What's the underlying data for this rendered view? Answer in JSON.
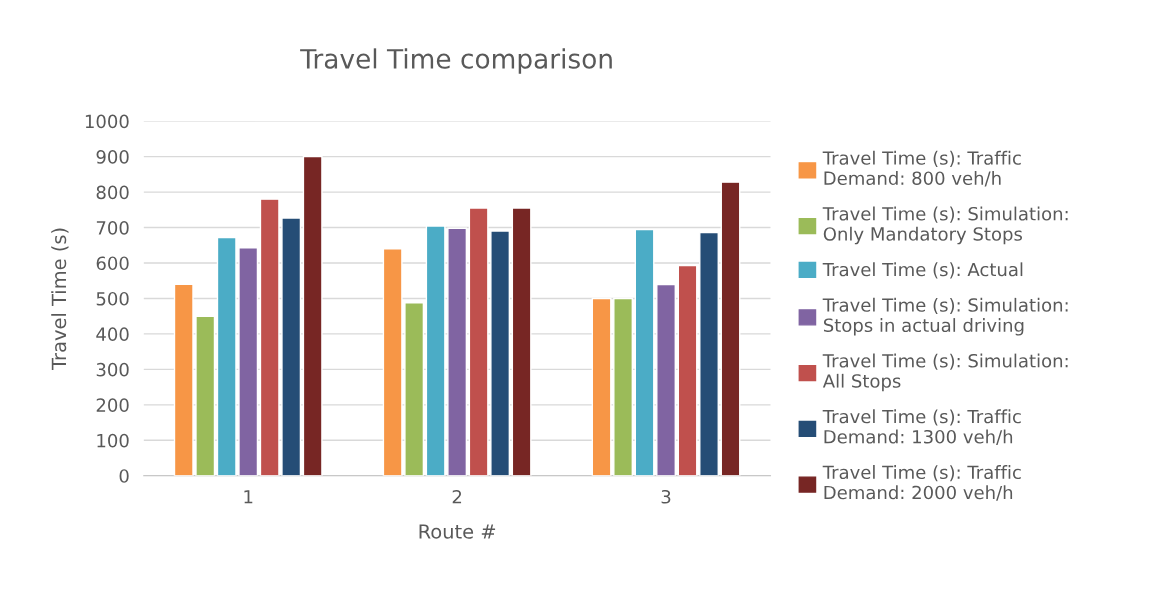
{
  "chart_data": {
    "type": "bar",
    "title": "Travel Time comparison",
    "xlabel": "Route #",
    "ylabel": "Travel Time (s)",
    "categories": [
      "1",
      "2",
      "3"
    ],
    "series": [
      {
        "name": "Travel Time (s): Traffic Demand: 800 veh/h",
        "color": "#f79646",
        "values": [
          540,
          640,
          500
        ]
      },
      {
        "name": "Travel Time (s): Simulation: Only Mandatory Stops",
        "color": "#9bbb59",
        "values": [
          450,
          488,
          500
        ]
      },
      {
        "name": "Travel Time (s): Actual",
        "color": "#4bacc6",
        "values": [
          672,
          704,
          694
        ]
      },
      {
        "name": "Travel Time (s): Simulation: Stops in actual driving",
        "color": "#8064a2",
        "values": [
          643,
          698,
          539
        ]
      },
      {
        "name": "Travel Time (s): Simulation: All Stops",
        "color": "#c0504d",
        "values": [
          780,
          755,
          593
        ]
      },
      {
        "name": "Travel Time (s): Traffic Demand: 1300 veh/h",
        "color": "#254d76",
        "values": [
          727,
          690,
          686
        ]
      },
      {
        "name": "Travel Time (s): Traffic Demand: 2000 veh/h",
        "color": "#772624",
        "values": [
          900,
          755,
          828
        ]
      }
    ],
    "ylim": [
      0,
      1000
    ],
    "yticks": [
      0,
      100,
      200,
      300,
      400,
      500,
      600,
      700,
      800,
      900,
      1000
    ],
    "grid": "y",
    "legend": "right"
  }
}
